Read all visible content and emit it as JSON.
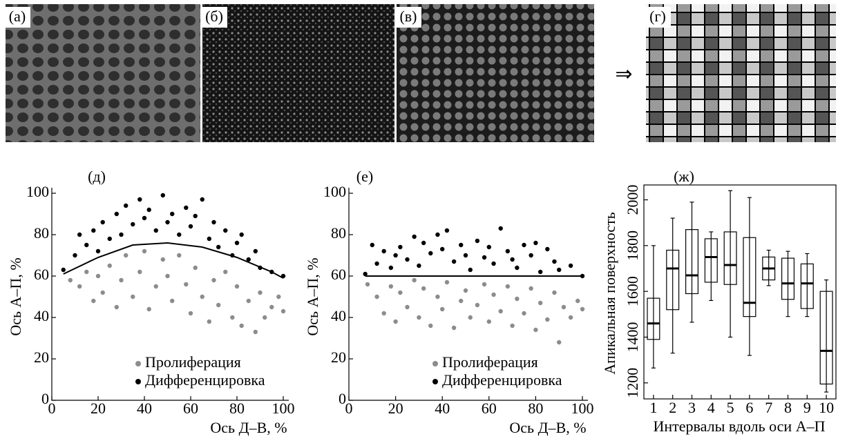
{
  "images": {
    "labels": [
      "(а)",
      "(б)",
      "(в)",
      "(г)"
    ],
    "arrow": "⇒"
  },
  "chart_data": [
    {
      "type": "scatter",
      "title": "(д)",
      "xlabel": "Ось Д–В, %",
      "ylabel": "Ось А–П, %",
      "xlim": [
        0,
        100
      ],
      "ylim": [
        0,
        100
      ],
      "xticks": [
        0,
        20,
        40,
        60,
        80,
        100
      ],
      "yticks": [
        0,
        20,
        40,
        60,
        80,
        100
      ],
      "legend": "lower center",
      "series": [
        {
          "name": "Пролиферация",
          "color": "#8c8c8c",
          "x": [
            8,
            12,
            15,
            18,
            20,
            22,
            25,
            28,
            30,
            32,
            35,
            38,
            40,
            42,
            45,
            48,
            50,
            52,
            55,
            58,
            60,
            62,
            65,
            68,
            70,
            72,
            75,
            78,
            80,
            82,
            85,
            88,
            90,
            92,
            95,
            98,
            100
          ],
          "values": [
            58,
            55,
            62,
            48,
            60,
            52,
            65,
            45,
            58,
            70,
            50,
            62,
            72,
            44,
            55,
            68,
            60,
            48,
            70,
            56,
            42,
            64,
            50,
            38,
            58,
            46,
            62,
            40,
            55,
            36,
            48,
            33,
            52,
            40,
            45,
            50,
            43
          ]
        },
        {
          "name": "Дифференцировка",
          "color": "#000000",
          "x": [
            5,
            10,
            12,
            15,
            18,
            20,
            22,
            25,
            28,
            30,
            32,
            35,
            38,
            40,
            42,
            45,
            48,
            50,
            52,
            55,
            58,
            60,
            62,
            65,
            68,
            70,
            72,
            75,
            78,
            80,
            82,
            85,
            88,
            90,
            95,
            100
          ],
          "values": [
            63,
            70,
            80,
            75,
            82,
            72,
            86,
            78,
            90,
            80,
            94,
            85,
            97,
            88,
            92,
            82,
            99,
            86,
            90,
            80,
            93,
            84,
            89,
            97,
            78,
            86,
            74,
            82,
            70,
            76,
            80,
            68,
            72,
            64,
            62,
            60
          ]
        }
      ],
      "fit": {
        "color": "#000000",
        "x": [
          5,
          20,
          35,
          50,
          65,
          80,
          95,
          100
        ],
        "values": [
          61,
          69,
          75,
          76,
          74,
          69,
          62,
          59
        ]
      }
    },
    {
      "type": "scatter",
      "title": "(е)",
      "xlabel": "Ось Д–В, %",
      "ylabel": "Ось А–П, %",
      "xlim": [
        0,
        100
      ],
      "ylim": [
        0,
        100
      ],
      "xticks": [
        0,
        20,
        40,
        60,
        80,
        100
      ],
      "yticks": [
        0,
        20,
        40,
        60,
        80,
        100
      ],
      "legend": "lower center",
      "series": [
        {
          "name": "Пролиферация",
          "color": "#8c8c8c",
          "x": [
            8,
            12,
            15,
            18,
            20,
            22,
            25,
            28,
            30,
            32,
            35,
            38,
            40,
            42,
            45,
            48,
            50,
            52,
            55,
            58,
            60,
            62,
            65,
            68,
            70,
            72,
            75,
            78,
            80,
            82,
            85,
            88,
            90,
            92,
            95,
            98,
            100
          ],
          "values": [
            56,
            50,
            42,
            55,
            38,
            52,
            45,
            58,
            40,
            54,
            36,
            50,
            44,
            57,
            35,
            48,
            53,
            40,
            46,
            56,
            38,
            51,
            43,
            55,
            36,
            49,
            42,
            54,
            34,
            47,
            39,
            52,
            28,
            45,
            40,
            48,
            44
          ]
        },
        {
          "name": "Дифференцировка",
          "color": "#000000",
          "x": [
            7,
            10,
            12,
            15,
            18,
            20,
            22,
            25,
            28,
            30,
            32,
            35,
            38,
            40,
            42,
            45,
            48,
            50,
            52,
            55,
            58,
            60,
            62,
            65,
            68,
            70,
            72,
            75,
            78,
            80,
            82,
            85,
            88,
            90,
            95,
            100
          ],
          "values": [
            61,
            75,
            66,
            72,
            64,
            70,
            74,
            68,
            79,
            65,
            76,
            71,
            80,
            73,
            82,
            67,
            75,
            70,
            63,
            77,
            69,
            74,
            66,
            83,
            72,
            68,
            64,
            75,
            70,
            76,
            62,
            73,
            67,
            63,
            65,
            60
          ]
        }
      ],
      "fit": {
        "color": "#000000",
        "x": [
          7,
          100
        ],
        "values": [
          60,
          60
        ]
      }
    },
    {
      "type": "box",
      "title": "(ж)",
      "xlabel": "Интервалы вдоль оси А–П",
      "ylabel": "Апикальная поверхность",
      "categories": [
        "1",
        "2",
        "3",
        "4",
        "5",
        "6",
        "7",
        "8",
        "9",
        "10"
      ],
      "ylim": [
        1130,
        2065
      ],
      "yticks": [
        1200,
        1400,
        1600,
        1800,
        2000
      ],
      "low": [
        1265,
        1330,
        1465,
        1560,
        1400,
        1320,
        1625,
        1490,
        1490,
        1160
      ],
      "q1": [
        1390,
        1520,
        1590,
        1640,
        1630,
        1490,
        1650,
        1565,
        1525,
        1195
      ],
      "median": [
        1460,
        1700,
        1670,
        1750,
        1715,
        1550,
        1700,
        1635,
        1635,
        1340
      ],
      "q3": [
        1570,
        1780,
        1870,
        1830,
        1860,
        1835,
        1750,
        1745,
        1720,
        1600
      ],
      "high": [
        1800,
        1920,
        1990,
        1860,
        2040,
        2010,
        1780,
        1775,
        1765,
        1650
      ]
    }
  ]
}
